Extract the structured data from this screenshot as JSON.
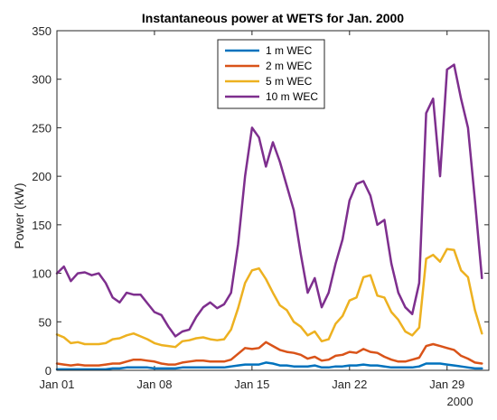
{
  "chart_data": {
    "type": "line",
    "title": "Instantaneous power at WETS for Jan. 2000",
    "xlabel": "",
    "ylabel": "Power (kW)",
    "x_secondary_label": "2000",
    "xlim": [
      0,
      31
    ],
    "ylim": [
      0,
      350
    ],
    "yticks": [
      0,
      50,
      100,
      150,
      200,
      250,
      300,
      350
    ],
    "xticks": [
      {
        "day": 0,
        "label": "Jan 01"
      },
      {
        "day": 7,
        "label": "Jan 08"
      },
      {
        "day": 14,
        "label": "Jan 15"
      },
      {
        "day": 21,
        "label": "Jan 22"
      },
      {
        "day": 28,
        "label": "Jan 29"
      }
    ],
    "grid": false,
    "legend_position": "top-center",
    "x": [
      0,
      0.5,
      1,
      1.5,
      2,
      2.5,
      3,
      3.5,
      4,
      4.5,
      5,
      5.5,
      6,
      6.5,
      7,
      7.5,
      8,
      8.5,
      9,
      9.5,
      10,
      10.5,
      11,
      11.5,
      12,
      12.5,
      13,
      13.5,
      14,
      14.5,
      15,
      15.5,
      16,
      16.5,
      17,
      17.5,
      18,
      18.5,
      19,
      19.5,
      20,
      20.5,
      21,
      21.5,
      22,
      22.5,
      23,
      23.5,
      24,
      24.5,
      25,
      25.5,
      26,
      26.5,
      27,
      27.5,
      28,
      28.5,
      29,
      29.5,
      30,
      30.5
    ],
    "series": [
      {
        "name": "1 m WEC",
        "color": "#0072BD",
        "values": [
          1,
          1,
          1,
          1,
          1,
          1,
          1,
          1,
          2,
          2,
          3,
          3,
          3,
          3,
          2,
          2,
          2,
          2,
          3,
          3,
          3,
          3,
          3,
          3,
          3,
          4,
          5,
          6,
          6,
          6,
          8,
          7,
          5,
          5,
          4,
          4,
          4,
          5,
          3,
          3,
          4,
          4,
          5,
          5,
          6,
          5,
          5,
          4,
          3,
          3,
          3,
          3,
          4,
          7,
          7,
          7,
          6,
          5,
          4,
          3,
          2,
          2
        ]
      },
      {
        "name": "2 m WEC",
        "color": "#D95319",
        "values": [
          7,
          6,
          5,
          6,
          5,
          5,
          5,
          6,
          7,
          7,
          9,
          11,
          11,
          10,
          9,
          7,
          6,
          6,
          8,
          9,
          10,
          10,
          9,
          9,
          9,
          11,
          17,
          23,
          22,
          23,
          29,
          25,
          21,
          19,
          18,
          16,
          12,
          14,
          10,
          11,
          15,
          16,
          19,
          18,
          22,
          19,
          18,
          14,
          11,
          9,
          9,
          11,
          13,
          25,
          27,
          25,
          23,
          21,
          15,
          12,
          8,
          7
        ]
      },
      {
        "name": "5 m WEC",
        "color": "#EDB120",
        "values": [
          37,
          34,
          28,
          29,
          27,
          27,
          27,
          28,
          32,
          33,
          36,
          38,
          35,
          32,
          28,
          26,
          25,
          24,
          30,
          31,
          33,
          34,
          32,
          31,
          32,
          42,
          64,
          90,
          103,
          105,
          94,
          80,
          67,
          62,
          50,
          45,
          36,
          40,
          30,
          32,
          48,
          56,
          72,
          75,
          96,
          98,
          77,
          75,
          60,
          52,
          40,
          36,
          44,
          115,
          119,
          112,
          125,
          124,
          103,
          96,
          62,
          38
        ]
      },
      {
        "name": "10 m WEC",
        "color": "#7E2F8E",
        "values": [
          100,
          107,
          92,
          100,
          101,
          98,
          100,
          90,
          75,
          70,
          80,
          78,
          78,
          69,
          60,
          57,
          45,
          35,
          40,
          42,
          55,
          65,
          70,
          64,
          68,
          80,
          130,
          200,
          250,
          240,
          210,
          235,
          215,
          190,
          165,
          120,
          80,
          95,
          65,
          80,
          110,
          135,
          175,
          192,
          195,
          180,
          150,
          155,
          110,
          80,
          65,
          58,
          90,
          265,
          280,
          200,
          310,
          315,
          280,
          250,
          175,
          95
        ]
      }
    ]
  }
}
